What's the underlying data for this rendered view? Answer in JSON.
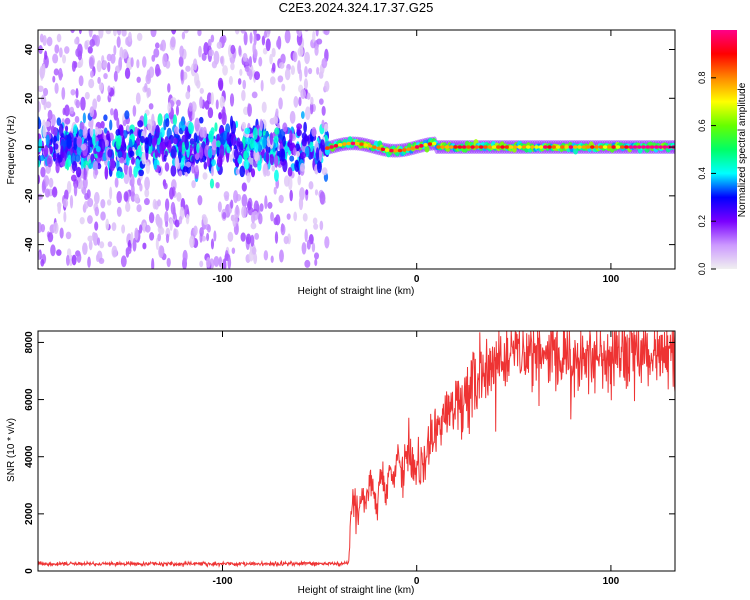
{
  "figure": {
    "title": "C2E3.2024.324.17.37.G25"
  },
  "chart_data": [
    {
      "type": "heatmap",
      "title": "C2E3.2024.324.17.37.G25",
      "xlabel": "Height of straight line (km)",
      "ylabel": "Frequency (Hz)",
      "xlim": [
        -195,
        133
      ],
      "ylim": [
        -50,
        48
      ],
      "x_ticks": [
        -100,
        0,
        100
      ],
      "x_tick_labels": [
        "-100",
        "0",
        "100"
      ],
      "y_ticks": [
        -40,
        -20,
        0,
        20,
        40
      ],
      "y_tick_labels": [
        "-40",
        "-20",
        "0",
        "20",
        "40"
      ],
      "grid": false,
      "colorbar": {
        "label": "Normalized spectral amplitude",
        "range": [
          0,
          1
        ],
        "ticks": [
          0.0,
          0.2,
          0.4,
          0.6,
          0.8
        ],
        "tick_labels": [
          "0.0",
          "0.2",
          "0.4",
          "0.6",
          "0.8"
        ],
        "colors": [
          "#f0f0f0",
          "#cc99ff",
          "#7a00ff",
          "#0000ff",
          "#00ffff",
          "#00ff66",
          "#66ff00",
          "#ffff00",
          "#ff8800",
          "#ff0000",
          "#ff0088"
        ]
      },
      "regions": [
        {
          "x_range": [
            -195,
            -46
          ],
          "note_freq_center": 0,
          "core_halfwidth_hz": 5,
          "core_amplitude": 0.3,
          "background_amplitude": 0.1
        },
        {
          "x_range": [
            -46,
            133
          ],
          "note_freq_center": 0,
          "core_halfwidth_hz": 2,
          "core_amplitude": 0.85
        }
      ]
    },
    {
      "type": "line",
      "xlabel": "Height of straight line (km)",
      "ylabel": "SNR (10 * v/v)",
      "xlim": [
        -195,
        133
      ],
      "ylim": [
        0,
        8400
      ],
      "x_ticks": [
        -100,
        0,
        100
      ],
      "x_tick_labels": [
        "-100",
        "0",
        "100"
      ],
      "y_ticks": [
        0,
        2000,
        4000,
        6000,
        8000
      ],
      "y_tick_labels": [
        "0",
        "2000",
        "4000",
        "6000",
        "8000"
      ],
      "grid": false,
      "color": "#ee3333",
      "series": [
        {
          "x": [
            -195,
            -180,
            -160,
            -140,
            -120,
            -100,
            -80,
            -60,
            -40,
            -35,
            -34,
            -32,
            -30,
            -28,
            -26,
            -24,
            -22,
            -20,
            -18,
            -16,
            -14,
            -12,
            -10,
            -8,
            -6,
            -4,
            -2,
            0,
            4,
            8,
            12,
            16,
            20,
            25,
            30,
            35,
            40,
            45,
            50,
            55,
            60,
            65,
            70,
            80,
            90,
            100,
            110,
            120,
            133
          ],
          "values": [
            250,
            250,
            250,
            250,
            250,
            250,
            250,
            250,
            250,
            300,
            1800,
            2300,
            2000,
            2500,
            2300,
            3200,
            2600,
            2500,
            3500,
            2500,
            3800,
            3000,
            3900,
            3700,
            3800,
            4500,
            3900,
            3500,
            3900,
            4700,
            5000,
            5400,
            5800,
            6300,
            6600,
            6900,
            7200,
            7300,
            7500,
            7700,
            7800,
            7700,
            7600,
            7500,
            7500,
            7400,
            7500,
            7500,
            7500
          ]
        }
      ]
    }
  ]
}
